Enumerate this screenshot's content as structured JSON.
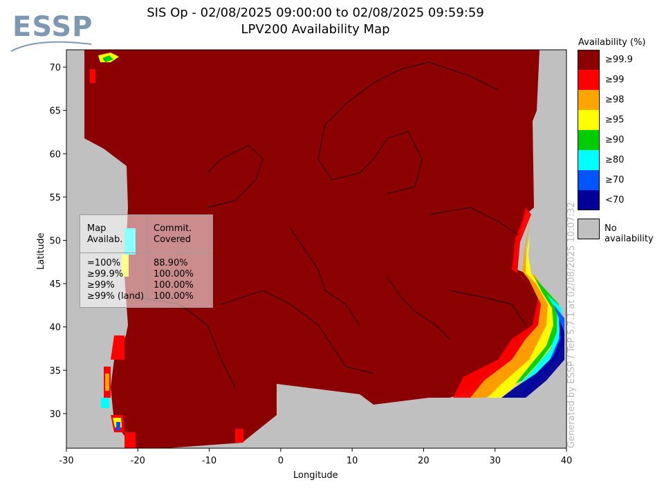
{
  "logo": {
    "text": "ESSP"
  },
  "header": {
    "title_line1": "SIS Op - 02/08/2025 09:00:00 to 02/08/2025 09:59:59",
    "title_line2": "LPV200 Availability Map"
  },
  "legend": {
    "title": "Availability (%)",
    "items": [
      {
        "label": "≥99.9",
        "color": "#8b0000"
      },
      {
        "label": "≥99",
        "color": "#ff0000"
      },
      {
        "label": "≥98",
        "color": "#ffa500"
      },
      {
        "label": "≥95",
        "color": "#ffff00"
      },
      {
        "label": "≥90",
        "color": "#00cc00"
      },
      {
        "label": "≥80",
        "color": "#00ffff"
      },
      {
        "label": "≥70",
        "color": "#0055ff"
      },
      {
        "label": "<70",
        "color": "#000099"
      }
    ],
    "no_availability": {
      "label": "No availability",
      "color": "#c0c0c0"
    }
  },
  "stats_table": {
    "col1_header_line1": "Map",
    "col1_header_line2": "Availab.",
    "col2_header_line1": "Commit.",
    "col2_header_line2": "Covered",
    "rows": [
      {
        "level": "=100%",
        "covered": "88.90%"
      },
      {
        "level": "≥99.9%",
        "covered": "100.00%"
      },
      {
        "level": "≥99%",
        "covered": "100.00%"
      },
      {
        "level": "≥99% (land)",
        "covered": "100.00%"
      }
    ]
  },
  "footer_note": "Generated by ESSP / TeP 5.7.1 at 02/08/2025 10:07:32",
  "chart_data": {
    "type": "heatmap",
    "title": "LPV200 Availability Map",
    "xlabel": "Longitude",
    "ylabel": "Latitude",
    "xlim": [
      -30,
      40
    ],
    "ylim": [
      26,
      72
    ],
    "x_ticks": [
      -30,
      -20,
      -10,
      0,
      10,
      20,
      30,
      40
    ],
    "y_ticks": [
      30,
      35,
      40,
      45,
      50,
      55,
      60,
      65,
      70
    ],
    "background_color": "#c0c0c0",
    "dominant_level": "≥99.9",
    "dominant_color": "#8b0000"
  }
}
